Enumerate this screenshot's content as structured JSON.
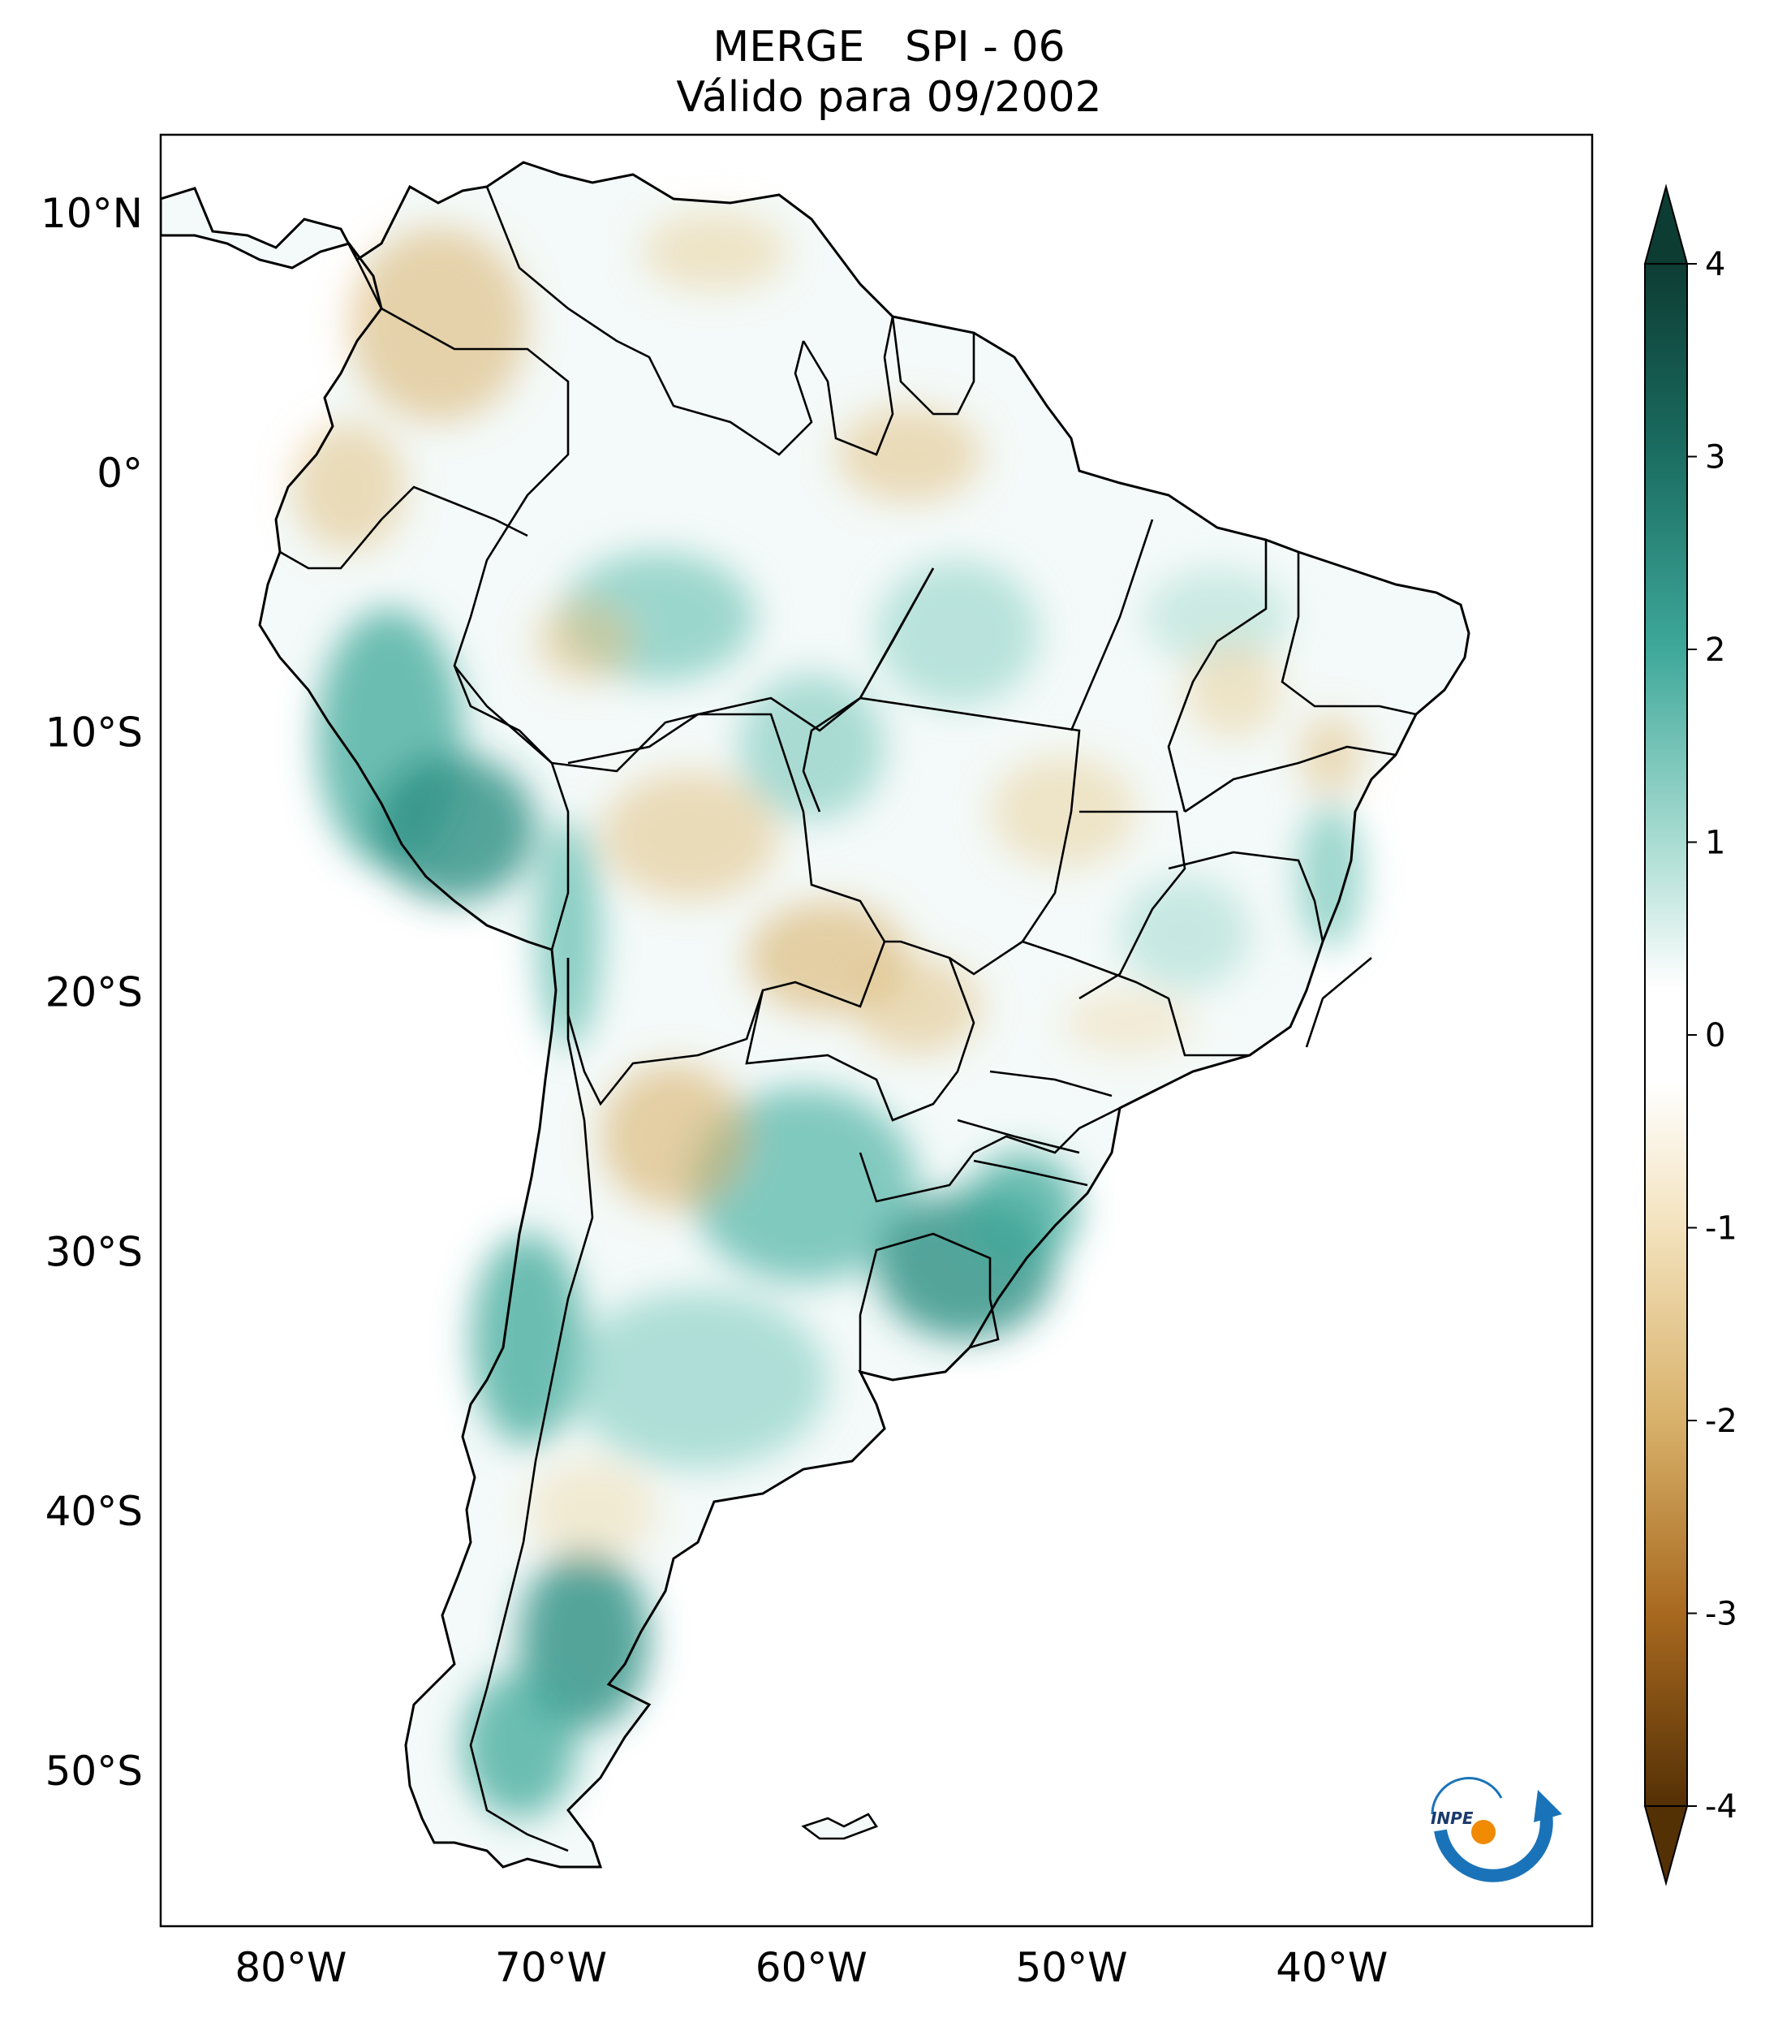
{
  "title": {
    "line1": "MERGE   SPI - 06",
    "line2": "Válido para 09/2002"
  },
  "map": {
    "region": "South America",
    "variable": "SPI - 06",
    "dataset": "MERGE",
    "lat_labels": [
      "10°N",
      "0°",
      "10°S",
      "20°S",
      "30°S",
      "40°S",
      "50°S"
    ],
    "lon_labels": [
      "80°W",
      "70°W",
      "60°W",
      "50°W",
      "40°W"
    ],
    "lat_values": [
      10,
      0,
      -10,
      -20,
      -30,
      -40,
      -50
    ],
    "lon_values": [
      -80,
      -70,
      -60,
      -50,
      -40
    ],
    "lon_range": [
      -85,
      -30
    ],
    "lat_range": [
      -56,
      13
    ]
  },
  "colorbar": {
    "ticks": [
      "4",
      "3",
      "2",
      "1",
      "0",
      "-1",
      "-2",
      "-3",
      "-4"
    ],
    "tick_values": [
      4,
      3,
      2,
      1,
      0,
      -1,
      -2,
      -3,
      -4
    ],
    "min": -4,
    "max": 4,
    "extend": "both",
    "colors": {
      "pos4": "#0d3c33",
      "pos3": "#1b6e62",
      "pos2": "#3ea89a",
      "pos1": "#a9dcd2",
      "zero": "#ffffff",
      "neg1": "#f3e2bd",
      "neg2": "#d8b16a",
      "neg3": "#a8691f",
      "neg4": "#543005"
    }
  },
  "logo": {
    "text": "INPE",
    "colors": {
      "arc": "#1a73b8",
      "dot": "#f08a00"
    }
  }
}
